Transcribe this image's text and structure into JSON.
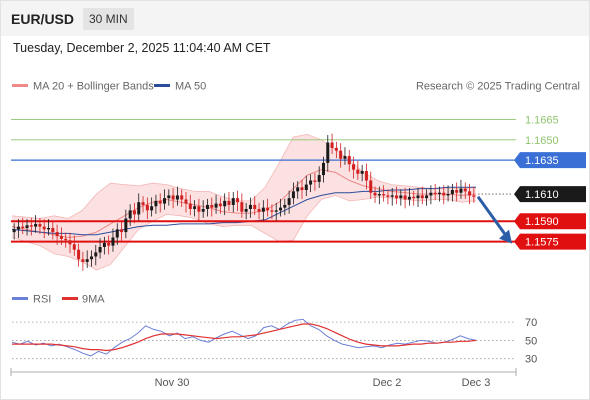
{
  "header": {
    "symbol": "EUR/USD",
    "timeframe": "30 MIN"
  },
  "datetime": "Tuesday, December 2, 2025 11:04:40 AM CET",
  "legend": {
    "bb_label": "MA 20 + Bollinger Bands",
    "ma50_label": "MA 50",
    "credit": "Research © 2025 Trading Central"
  },
  "rsi_legend": {
    "rsi_label": "RSI",
    "ma_label": "9MA"
  },
  "colors": {
    "bb": "#f08a8a",
    "bb_fill": "#fadcdc",
    "ma50": "#2b4d9b",
    "up": "#1a1a1a",
    "down": "#d21f1f",
    "resistance_green": "#8fc46e",
    "pivot_blue": "#3a6fd6",
    "support_red": "#e01010",
    "current_bg": "#1a1a1a",
    "rsi": "#6a7fd6",
    "rsi_ma": "#e03030",
    "arrow": "#2b5ea7"
  },
  "chart_data": [
    {
      "type": "candlestick",
      "ylim": [
        1.1543,
        1.1683
      ],
      "x_ticks": [
        "Nov 30",
        "Dec 2",
        "Dec 3"
      ],
      "levels": [
        {
          "value": 1.1665,
          "label": "1.1665",
          "kind": "resistance"
        },
        {
          "value": 1.165,
          "label": "1.1650",
          "kind": "resistance"
        },
        {
          "value": 1.1635,
          "label": "1.1635",
          "kind": "pivot"
        },
        {
          "value": 1.161,
          "label": "1.1610",
          "kind": "current"
        },
        {
          "value": 1.159,
          "label": "1.1590",
          "kind": "support"
        },
        {
          "value": 1.1575,
          "label": "1.1575",
          "kind": "support"
        }
      ],
      "forecast": {
        "from": 1.1608,
        "to": 1.1575,
        "direction": "down"
      },
      "series": [
        {
          "name": "MA 20 + Bollinger Bands",
          "role": "ma20",
          "values": [
            1.1586,
            1.1584,
            1.1582,
            1.158,
            1.1578,
            1.1579,
            1.1582,
            1.1588,
            1.1594,
            1.16,
            1.1604,
            1.1606,
            1.1604,
            1.1602,
            1.16,
            1.1597,
            1.1596,
            1.1596,
            1.1598,
            1.1604,
            1.1614,
            1.1624,
            1.1628,
            1.1626,
            1.162,
            1.1616,
            1.1614,
            1.1612,
            1.1611,
            1.161,
            1.161,
            1.161,
            1.1609,
            1.161
          ]
        },
        {
          "name": "",
          "role": "bb_upper",
          "values": [
            1.1594,
            1.1593,
            1.1592,
            1.1594,
            1.1592,
            1.1598,
            1.161,
            1.1618,
            1.1617,
            1.1616,
            1.1618,
            1.1617,
            1.1614,
            1.1612,
            1.1612,
            1.1608,
            1.1605,
            1.1605,
            1.1615,
            1.1633,
            1.1652,
            1.1654,
            1.165,
            1.1643,
            1.1635,
            1.1626,
            1.162,
            1.1617,
            1.1616,
            1.1615,
            1.1614,
            1.1614,
            1.1614,
            1.1615
          ]
        },
        {
          "name": "",
          "role": "bb_lower",
          "values": [
            1.1578,
            1.1575,
            1.1572,
            1.1566,
            1.1564,
            1.156,
            1.1554,
            1.1558,
            1.1571,
            1.1584,
            1.159,
            1.1595,
            1.1594,
            1.1592,
            1.1588,
            1.1586,
            1.1587,
            1.1587,
            1.1581,
            1.1575,
            1.1576,
            1.1594,
            1.1606,
            1.1609,
            1.1605,
            1.1606,
            1.1608,
            1.1607,
            1.1606,
            1.1605,
            1.1606,
            1.1606,
            1.1604,
            1.1605
          ]
        },
        {
          "name": "MA 50",
          "role": "ma50",
          "values": [
            1.1584,
            1.1583,
            1.1582,
            1.1581,
            1.1581,
            1.158,
            1.158,
            1.1582,
            1.1584,
            1.1586,
            1.1587,
            1.1587,
            1.1588,
            1.1588,
            1.1588,
            1.1589,
            1.1589,
            1.159,
            1.1591,
            1.1596,
            1.1601,
            1.1606,
            1.1609,
            1.1611,
            1.1611,
            1.1612,
            1.1612,
            1.1613,
            1.1613,
            1.1614,
            1.1614,
            1.1615,
            1.1615,
            1.1615
          ]
        }
      ],
      "ohlc_close": [
        1.1584,
        1.1586,
        1.1585,
        1.1587,
        1.1586,
        1.1588,
        1.1586,
        1.1584,
        1.1585,
        1.1582,
        1.1579,
        1.1577,
        1.1576,
        1.1573,
        1.1569,
        1.1562,
        1.156,
        1.1562,
        1.1564,
        1.1567,
        1.1571,
        1.1574,
        1.1572,
        1.1578,
        1.1584,
        1.1582,
        1.1592,
        1.1598,
        1.1595,
        1.1604,
        1.1602,
        1.1598,
        1.1601,
        1.1605,
        1.1603,
        1.1607,
        1.1609,
        1.1606,
        1.1609,
        1.1606,
        1.1603,
        1.1599,
        1.1601,
        1.1597,
        1.1599,
        1.1602,
        1.16,
        1.1603,
        1.1601,
        1.1605,
        1.1602,
        1.1607,
        1.1604,
        1.1597,
        1.1599,
        1.1602,
        1.1599,
        1.1597,
        1.16,
        1.1598,
        1.1597,
        1.1598,
        1.16,
        1.1602,
        1.1607,
        1.1612,
        1.1615,
        1.1613,
        1.1617,
        1.162,
        1.1619,
        1.1624,
        1.1633,
        1.1648,
        1.1644,
        1.1642,
        1.1636,
        1.1638,
        1.1632,
        1.1628,
        1.1625,
        1.1627,
        1.162,
        1.1611,
        1.1609,
        1.161,
        1.1609,
        1.1608,
        1.1609,
        1.1607,
        1.1609,
        1.1606,
        1.1608,
        1.1607,
        1.1609,
        1.1607,
        1.1609,
        1.1611,
        1.161,
        1.1611,
        1.1609,
        1.161,
        1.1613,
        1.1611,
        1.1614,
        1.1612,
        1.1609,
        1.1608
      ],
      "ohlc_open": [
        1.1582,
        1.1584,
        1.1586,
        1.1585,
        1.1587,
        1.1586,
        1.1588,
        1.1586,
        1.1584,
        1.1585,
        1.1582,
        1.1579,
        1.1577,
        1.1576,
        1.1573,
        1.1569,
        1.1562,
        1.156,
        1.1562,
        1.1564,
        1.1567,
        1.1571,
        1.1574,
        1.1572,
        1.1578,
        1.1584,
        1.1582,
        1.1592,
        1.1598,
        1.1595,
        1.1604,
        1.1602,
        1.1598,
        1.1601,
        1.1605,
        1.1603,
        1.1607,
        1.1609,
        1.1606,
        1.1609,
        1.1606,
        1.1603,
        1.1599,
        1.1601,
        1.1597,
        1.1599,
        1.1602,
        1.16,
        1.1603,
        1.1601,
        1.1605,
        1.1602,
        1.1607,
        1.1604,
        1.1597,
        1.1599,
        1.1602,
        1.1599,
        1.1597,
        1.16,
        1.1598,
        1.1597,
        1.1598,
        1.16,
        1.1602,
        1.1607,
        1.1612,
        1.1615,
        1.1613,
        1.1617,
        1.162,
        1.1619,
        1.1624,
        1.1633,
        1.1648,
        1.1644,
        1.1642,
        1.1636,
        1.1638,
        1.1632,
        1.1628,
        1.1625,
        1.1627,
        1.162,
        1.1611,
        1.1609,
        1.161,
        1.1609,
        1.1608,
        1.1609,
        1.1607,
        1.1609,
        1.1606,
        1.1608,
        1.1607,
        1.1609,
        1.1607,
        1.1609,
        1.1611,
        1.161,
        1.1611,
        1.1609,
        1.161,
        1.1613,
        1.1611,
        1.1614,
        1.1612,
        1.1609
      ]
    },
    {
      "type": "line",
      "ylim": [
        22,
        80
      ],
      "y_ticks": [
        "70",
        "50",
        "30"
      ],
      "series": [
        {
          "name": "RSI",
          "values": [
            48,
            46,
            49,
            45,
            47,
            44,
            46,
            43,
            40,
            36,
            33,
            38,
            35,
            42,
            48,
            52,
            58,
            66,
            62,
            60,
            55,
            58,
            52,
            54,
            50,
            48,
            53,
            57,
            60,
            56,
            52,
            55,
            64,
            66,
            62,
            68,
            72,
            73,
            66,
            62,
            55,
            50,
            46,
            44,
            42,
            43,
            44,
            42,
            45,
            47,
            46,
            48,
            50,
            49,
            47,
            48,
            51,
            55,
            52,
            50
          ]
        },
        {
          "name": "9MA",
          "values": [
            46,
            46,
            46,
            46,
            46,
            46,
            45,
            44,
            43,
            41,
            40,
            40,
            39,
            40,
            42,
            45,
            48,
            52,
            55,
            57,
            57,
            57,
            56,
            55,
            54,
            53,
            52,
            53,
            54,
            54,
            55,
            56,
            58,
            60,
            62,
            64,
            66,
            68,
            68,
            66,
            63,
            59,
            55,
            51,
            48,
            46,
            45,
            44,
            44,
            44,
            45,
            46,
            46,
            47,
            47,
            48,
            48,
            49,
            49,
            50
          ]
        }
      ]
    }
  ]
}
